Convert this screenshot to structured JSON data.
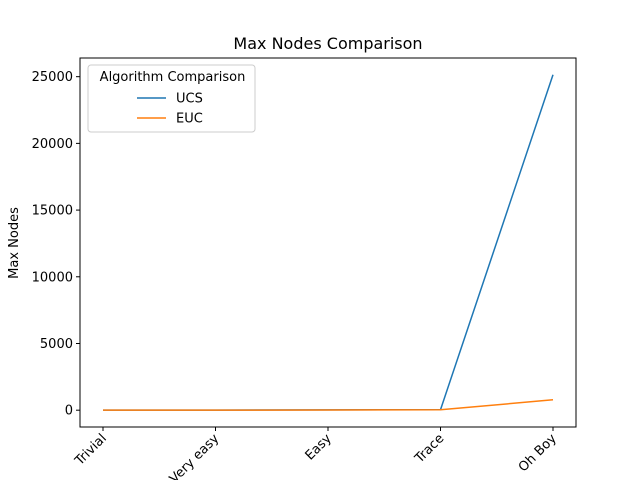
{
  "chart_data": {
    "type": "line",
    "title": "Max Nodes Comparison",
    "xlabel": "",
    "ylabel": "Max Nodes",
    "categories": [
      "Trivial",
      "Very easy",
      "Easy",
      "Trace",
      "Oh Boy"
    ],
    "yticks": [
      0,
      5000,
      10000,
      15000,
      20000,
      25000
    ],
    "ylim": [
      -1260,
      26400
    ],
    "grid": false,
    "legend": {
      "title": "Algorithm Comparison",
      "placement": "top-left"
    },
    "series": [
      {
        "name": "UCS",
        "color": "#1f77b4",
        "values": [
          5,
          10,
          20,
          40,
          25150
        ]
      },
      {
        "name": "EUC",
        "color": "#ff7f0e",
        "values": [
          5,
          8,
          15,
          30,
          780
        ]
      }
    ]
  }
}
